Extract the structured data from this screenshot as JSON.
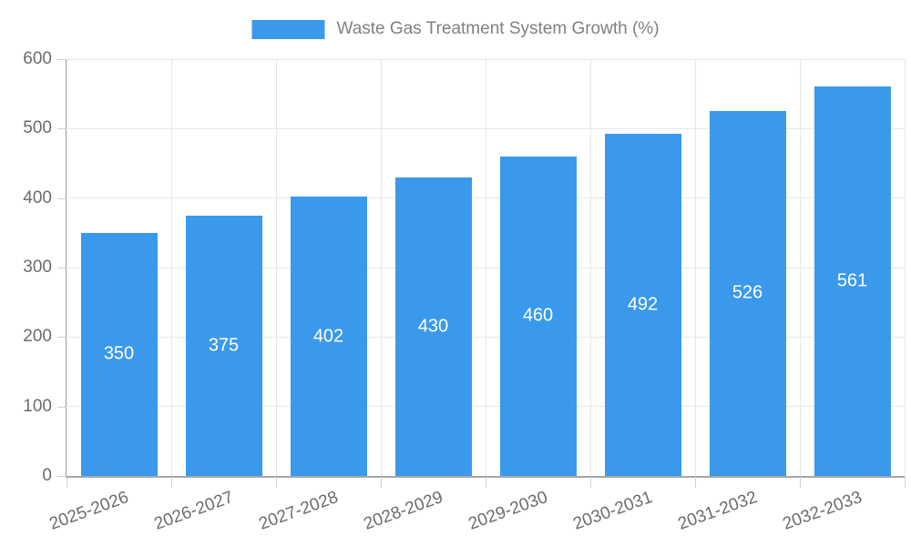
{
  "chart_data": {
    "type": "bar",
    "title": "",
    "legend": "Waste Gas Treatment System Growth (%)",
    "legend_position": "top",
    "categories": [
      "2025-2026",
      "2026-2027",
      "2027-2028",
      "2028-2029",
      "2029-2030",
      "2030-2031",
      "2031-2032",
      "2032-2033"
    ],
    "values": [
      350,
      375,
      402,
      430,
      460,
      492,
      526,
      561
    ],
    "xlabel": "",
    "ylabel": "",
    "ylim": [
      0,
      600
    ],
    "yticks": [
      0,
      100,
      200,
      300,
      400,
      500,
      600
    ],
    "grid": true,
    "x_label_rotation_deg": -20,
    "value_labels_inside_bars": true
  },
  "colors": {
    "bar": "#3b99ec",
    "bar_label": "#ffffff",
    "grid": "#e6e6e6",
    "axis_line": "#a6a6a6",
    "tick_mark": "#cfcfcf",
    "tick_text": "#6c6c6c",
    "legend_text": "#808080",
    "background": "#ffffff"
  }
}
